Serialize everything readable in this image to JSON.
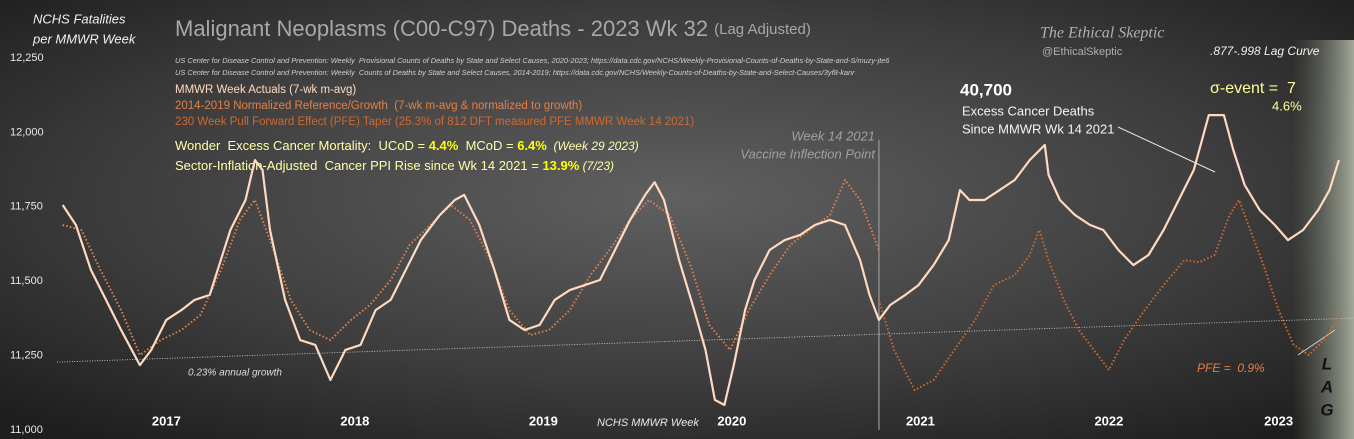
{
  "chart_data": {
    "type": "line",
    "title": "Malignant Neoplasms (C00-C97) Deaths - 2023 Wk 32",
    "subtitle": "(Lag Adjusted)",
    "ylabel": [
      "NCHS Fatalities",
      "per MMWR Week"
    ],
    "xlabel": "NCHS MMWR Week",
    "sources": [
      "US Center for Disease Control and Prevention: Weekly  Provisional Counts of Deaths by State and Select Causes, 2020-2023; https://data.cdc.gov/NCHS/Weekly-Provisional-Counts-of-Deaths-by-State-and-S/muzy-jte6",
      "US Center for Disease Control and Prevention: Weekly  Counts of Deaths by State and Select Causes, 2014-2019; https://data.cdc.gov/NCHS/Weekly-Counts-of-Deaths-by-State-and-Select-Causes/3yf8-kanr"
    ],
    "brand": [
      "The Ethical Skeptic",
      "@EthicalSkeptic"
    ],
    "annotations": {
      "lag_curve": ".877-.998 Lag Curve",
      "excess_total": "40,700",
      "excess_lines": [
        "Excess Cancer Deaths",
        "Since MMWR Wk 14 2021"
      ],
      "sigma": "σ-event =  7",
      "sigma_pct": "4.6%",
      "vline": [
        "Week 14 2021",
        "Vaccine Inflection Point"
      ],
      "wonder": [
        "Wonder  Excess Cancer Mortality:  UCoD = ",
        "4.4%",
        "  MCoD = ",
        "6.4%",
        "  (Week 29 2023)"
      ],
      "sector": [
        "Sector-Inflation-Adjusted  Cancer PPI Rise since Wk 14 2021 = ",
        "13.9%",
        " (7/23)"
      ],
      "pfe": "PFE =  0.9%",
      "lag": [
        "L",
        "A",
        "G"
      ]
    },
    "xlim": [
      2016.92,
      2023.8
    ],
    "xticks": [
      2017,
      2018,
      2019,
      2020,
      2021,
      2022,
      2023
    ],
    "ylim": [
      11000,
      12250
    ],
    "yticks": [
      {
        "value": 11000,
        "label": "11,000"
      },
      {
        "value": 11250,
        "label": "11,250"
      },
      {
        "value": 11500,
        "label": "11,500"
      },
      {
        "value": 11750,
        "label": "11,750"
      },
      {
        "value": 12000,
        "label": "12,000"
      },
      {
        "value": 12250,
        "label": "12,250"
      }
    ],
    "grid": false,
    "vline_x": 2021.28,
    "series": [
      {
        "name": "MMWR Week Actuals (7-wk m-avg)",
        "color": "#ffd9c0",
        "style": "solid",
        "x": [
          2016.95,
          2017.02,
          2017.1,
          2017.18,
          2017.26,
          2017.36,
          2017.42,
          2017.5,
          2017.58,
          2017.65,
          2017.73,
          2017.84,
          2017.92,
          2017.97,
          2018.01,
          2018.05,
          2018.13,
          2018.21,
          2018.29,
          2018.37,
          2018.45,
          2018.53,
          2018.61,
          2018.69,
          2018.77,
          2018.85,
          2018.95,
          2019.03,
          2019.08,
          2019.16,
          2019.24,
          2019.32,
          2019.4,
          2019.48,
          2019.56,
          2019.64,
          2019.72,
          2019.8,
          2019.88,
          2019.96,
          2020.04,
          2020.09,
          2020.14,
          2020.22,
          2020.3,
          2020.36,
          2020.41,
          2020.46,
          2020.51,
          2020.57,
          2020.62,
          2020.7,
          2020.78,
          2020.86,
          2020.94,
          2021.02,
          2021.1,
          2021.18,
          2021.23,
          2021.28,
          2021.34,
          2021.42,
          2021.49,
          2021.57,
          2021.65,
          2021.71,
          2021.76,
          2021.84,
          2021.92,
          2022.0,
          2022.08,
          2022.16,
          2022.18,
          2022.24,
          2022.32,
          2022.4,
          2022.47,
          2022.55,
          2022.63,
          2022.71,
          2022.79,
          2022.87,
          2022.95,
          2023.03,
          2023.11,
          2023.16,
          2023.22,
          2023.3,
          2023.38,
          2023.45,
          2023.53,
          2023.61,
          2023.67,
          2023.72
        ],
        "values": [
          11756,
          11689,
          11538,
          11437,
          11336,
          11218,
          11269,
          11370,
          11403,
          11437,
          11454,
          11672,
          11773,
          11907,
          11874,
          11672,
          11437,
          11302,
          11286,
          11168,
          11269,
          11286,
          11403,
          11437,
          11538,
          11638,
          11722,
          11773,
          11790,
          11689,
          11538,
          11370,
          11336,
          11353,
          11437,
          11470,
          11487,
          11504,
          11605,
          11706,
          11790,
          11833,
          11773,
          11571,
          11403,
          11269,
          11101,
          11084,
          11218,
          11403,
          11504,
          11605,
          11638,
          11655,
          11689,
          11706,
          11689,
          11571,
          11454,
          11370,
          11420,
          11454,
          11487,
          11554,
          11638,
          11806,
          11773,
          11773,
          11806,
          11840,
          11907,
          11958,
          11857,
          11773,
          11722,
          11689,
          11672,
          11605,
          11554,
          11588,
          11672,
          11773,
          11874,
          12058,
          12058,
          11941,
          11823,
          11739,
          11689,
          11638,
          11672,
          11739,
          11806,
          11907
        ]
      },
      {
        "name": "2014-2019 Normalized Reference/Growth  (7-wk m-avg & normalized to growth)",
        "color": "#e0804a",
        "style": "dotted",
        "x": [
          2016.95,
          2017.05,
          2017.15,
          2017.26,
          2017.36,
          2017.47,
          2017.58,
          2017.68,
          2017.79,
          2017.89,
          2017.97,
          2018.05,
          2018.16,
          2018.26,
          2018.37,
          2018.48,
          2018.58,
          2018.69,
          2018.79,
          2018.9,
          2019.01,
          2019.11,
          2019.22,
          2019.32,
          2019.43,
          2019.53,
          2019.64,
          2019.75,
          2019.85,
          2019.96,
          2020.06,
          2020.17,
          2020.28,
          2020.38,
          2020.49,
          2020.59,
          2020.7,
          2020.81,
          2020.91,
          2021.02,
          2021.1,
          2021.18,
          2021.28
        ],
        "values": [
          11689,
          11672,
          11538,
          11403,
          11252,
          11302,
          11336,
          11386,
          11538,
          11706,
          11773,
          11638,
          11437,
          11336,
          11302,
          11370,
          11420,
          11504,
          11622,
          11689,
          11756,
          11706,
          11571,
          11403,
          11319,
          11336,
          11403,
          11521,
          11605,
          11706,
          11773,
          11722,
          11554,
          11353,
          11269,
          11403,
          11521,
          11622,
          11672,
          11722,
          11840,
          11773,
          11605
        ]
      },
      {
        "name": "230 Week Pull Forward Effect (PFE) Taper (25.3% of 812 DFT measured PFE MMWR Week 14 2021)",
        "color": "#d0692e",
        "style": "dotted",
        "x": [
          2021.28,
          2021.36,
          2021.47,
          2021.57,
          2021.68,
          2021.79,
          2021.89,
          2022.0,
          2022.08,
          2022.13,
          2022.18,
          2022.26,
          2022.34,
          2022.42,
          2022.5,
          2022.58,
          2022.69,
          2022.79,
          2022.9,
          2022.98,
          2023.06,
          2023.14,
          2023.19,
          2023.24,
          2023.32,
          2023.4,
          2023.48,
          2023.56,
          2023.64,
          2023.72
        ],
        "values": [
          11437,
          11269,
          11134,
          11168,
          11269,
          11370,
          11487,
          11521,
          11588,
          11672,
          11571,
          11437,
          11336,
          11269,
          11202,
          11302,
          11403,
          11487,
          11571,
          11564,
          11588,
          11722,
          11773,
          11689,
          11554,
          11403,
          11286,
          11252,
          11302,
          11376
        ]
      },
      {
        "name": "0.23% annual growth",
        "color": "#c8c8c8",
        "style": "thin",
        "x": [
          2016.92,
          2023.8
        ],
        "values": [
          11228,
          11376
        ]
      }
    ]
  }
}
